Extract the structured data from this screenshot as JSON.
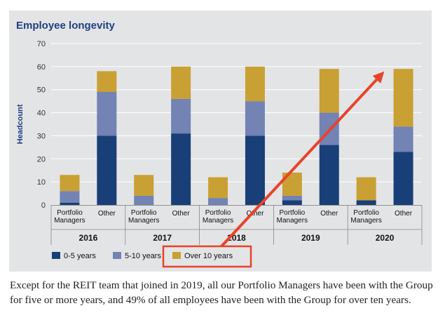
{
  "chart_data": {
    "type": "bar",
    "stacked": true,
    "title": "Employee longevity",
    "ylabel": "Headcount",
    "ylim": [
      0,
      70
    ],
    "yticks": [
      0,
      10,
      20,
      30,
      40,
      50,
      60,
      70
    ],
    "grid": true,
    "legend_position": "bottom",
    "groups": [
      "2016",
      "2017",
      "2018",
      "2019",
      "2020"
    ],
    "categories": [
      {
        "group": "2016",
        "label_lines": [
          "Portfolio",
          "Managers"
        ]
      },
      {
        "group": "2016",
        "label_lines": [
          "Other"
        ]
      },
      {
        "group": "2017",
        "label_lines": [
          "Portfolio",
          "Managers"
        ]
      },
      {
        "group": "2017",
        "label_lines": [
          "Other"
        ]
      },
      {
        "group": "2018",
        "label_lines": [
          "Portfolio",
          "Managers"
        ]
      },
      {
        "group": "2018",
        "label_lines": [
          "Other"
        ]
      },
      {
        "group": "2019",
        "label_lines": [
          "Portfolio",
          "Managers"
        ]
      },
      {
        "group": "2019",
        "label_lines": [
          "Other"
        ]
      },
      {
        "group": "2020",
        "label_lines": [
          "Portfolio",
          "Managers"
        ]
      },
      {
        "group": "2020",
        "label_lines": [
          "Other"
        ]
      }
    ],
    "series": [
      {
        "name": "0-5 years",
        "color": "#183f78",
        "values": [
          1,
          30,
          0,
          31,
          0,
          30,
          2,
          26,
          2,
          23
        ]
      },
      {
        "name": "5-10 years",
        "color": "#7283b4",
        "values": [
          5,
          19,
          4,
          15,
          3,
          15,
          2,
          14,
          0,
          11
        ]
      },
      {
        "name": "Over 10 years",
        "color": "#c9a033",
        "values": [
          7,
          9,
          9,
          14,
          9,
          15,
          10,
          19,
          10,
          25
        ]
      }
    ],
    "annotations": {
      "highlight_color": "#e8432a",
      "highlighted_legend_entry": "Over 10 years",
      "arrow_from": "legend entry Over 10 years",
      "arrow_to": {
        "category_index": 9,
        "value": 57
      }
    }
  },
  "caption": "Except for the REIT team that joined in 2019, all our Portfolio Managers have been with the Group for five or more years, and 49% of all employees have been with the Group for over ten years."
}
